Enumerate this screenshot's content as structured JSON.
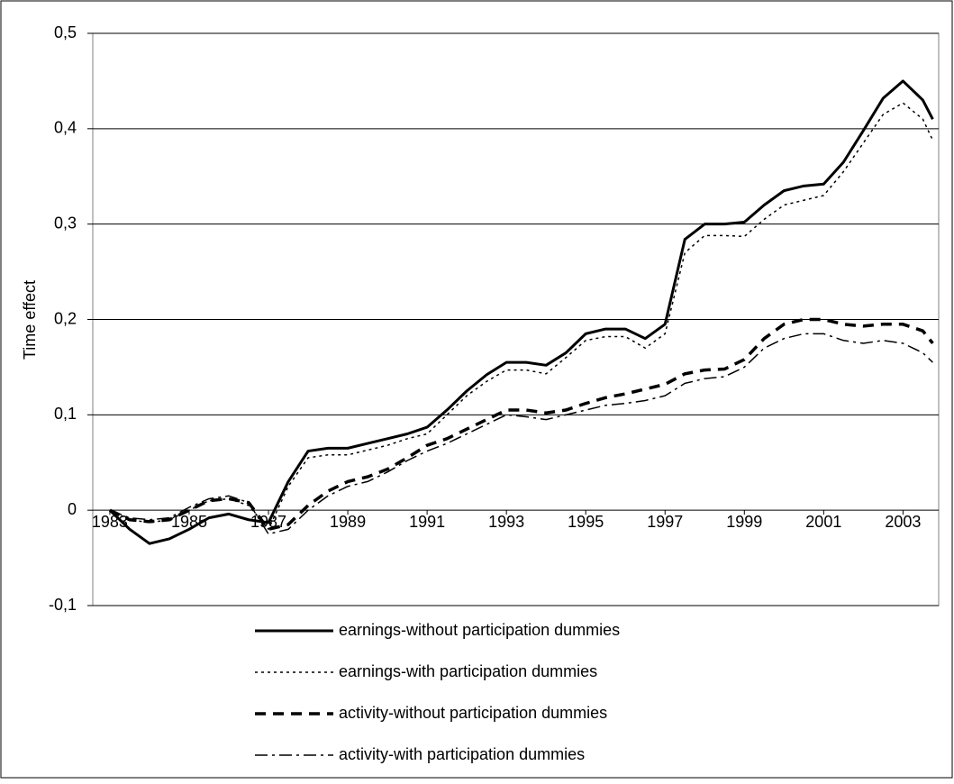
{
  "chart_data": {
    "type": "line",
    "y_label": "Time effect",
    "x": [
      1983,
      1983.5,
      1984,
      1984.5,
      1985,
      1985.5,
      1986,
      1986.5,
      1987,
      1987.5,
      1988,
      1988.5,
      1989,
      1989.5,
      1990,
      1990.5,
      1991,
      1991.5,
      1992,
      1992.5,
      1993,
      1993.5,
      1994,
      1994.5,
      1995,
      1995.5,
      1996,
      1996.5,
      1997,
      1997.5,
      1998,
      1998.5,
      1999,
      1999.5,
      2000,
      2000.5,
      2001,
      2001.5,
      2002,
      2002.5,
      2003,
      2003.5,
      2003.75
    ],
    "series": [
      {
        "name": "earnings-without participation dummies",
        "color": "#000000",
        "style": "solid",
        "width": 3,
        "values": [
          0,
          -0.02,
          -0.035,
          -0.03,
          -0.02,
          -0.008,
          -0.004,
          -0.01,
          -0.013,
          0.03,
          0.062,
          0.065,
          0.065,
          0.07,
          0.075,
          0.08,
          0.087,
          0.105,
          0.125,
          0.142,
          0.155,
          0.155,
          0.152,
          0.165,
          0.185,
          0.19,
          0.19,
          0.18,
          0.195,
          0.284,
          0.3,
          0.3,
          0.302,
          0.32,
          0.335,
          0.34,
          0.342,
          0.365,
          0.398,
          0.432,
          0.45,
          0.43,
          0.41
        ]
      },
      {
        "name": "earnings-with participation dummies",
        "color": "#000000",
        "style": "dotted",
        "width": 1.5,
        "values": [
          0,
          -0.01,
          -0.013,
          -0.01,
          0,
          0.01,
          0.012,
          0.005,
          -0.02,
          0.025,
          0.055,
          0.058,
          0.058,
          0.063,
          0.068,
          0.075,
          0.08,
          0.1,
          0.12,
          0.135,
          0.147,
          0.147,
          0.143,
          0.16,
          0.178,
          0.182,
          0.182,
          0.17,
          0.185,
          0.27,
          0.288,
          0.288,
          0.287,
          0.305,
          0.32,
          0.325,
          0.33,
          0.355,
          0.385,
          0.415,
          0.427,
          0.41,
          0.388
        ]
      },
      {
        "name": "activity-without participation dummies",
        "color": "#000000",
        "style": "dashed",
        "width": 3.5,
        "values": [
          0,
          -0.01,
          -0.012,
          -0.01,
          0,
          0.01,
          0.012,
          0.008,
          -0.02,
          -0.015,
          0.005,
          0.02,
          0.03,
          0.035,
          0.043,
          0.055,
          0.068,
          0.075,
          0.085,
          0.095,
          0.105,
          0.105,
          0.102,
          0.105,
          0.112,
          0.118,
          0.122,
          0.127,
          0.132,
          0.143,
          0.147,
          0.148,
          0.158,
          0.18,
          0.195,
          0.2,
          0.2,
          0.195,
          0.193,
          0.195,
          0.195,
          0.188,
          0.175
        ]
      },
      {
        "name": "activity-with participation dummies",
        "color": "#000000",
        "style": "dashdot",
        "width": 1.5,
        "values": [
          0,
          -0.008,
          -0.01,
          -0.008,
          0.003,
          0.012,
          0.015,
          0.008,
          -0.025,
          -0.02,
          0,
          0.015,
          0.025,
          0.03,
          0.04,
          0.052,
          0.062,
          0.07,
          0.08,
          0.09,
          0.1,
          0.098,
          0.095,
          0.1,
          0.105,
          0.11,
          0.112,
          0.115,
          0.12,
          0.133,
          0.138,
          0.14,
          0.15,
          0.17,
          0.18,
          0.185,
          0.185,
          0.178,
          0.175,
          0.178,
          0.175,
          0.165,
          0.155
        ]
      }
    ],
    "xlim": [
      1982.57,
      2003.9
    ],
    "xticks": [
      1983,
      1985,
      1987,
      1989,
      1991,
      1993,
      1995,
      1997,
      1999,
      2001,
      2003
    ],
    "ylim": [
      -0.1,
      0.5
    ],
    "yticks": [
      {
        "value": -0.1,
        "label": "-0,1"
      },
      0,
      {
        "value": 0.1,
        "label": "0,1"
      },
      {
        "value": 0.2,
        "label": "0,2"
      },
      {
        "value": 0.3,
        "label": "0,3"
      },
      {
        "value": 0.4,
        "label": "0,4"
      },
      {
        "value": 0.5,
        "label": "0,5"
      }
    ],
    "grid": true,
    "legend": "bottom"
  }
}
